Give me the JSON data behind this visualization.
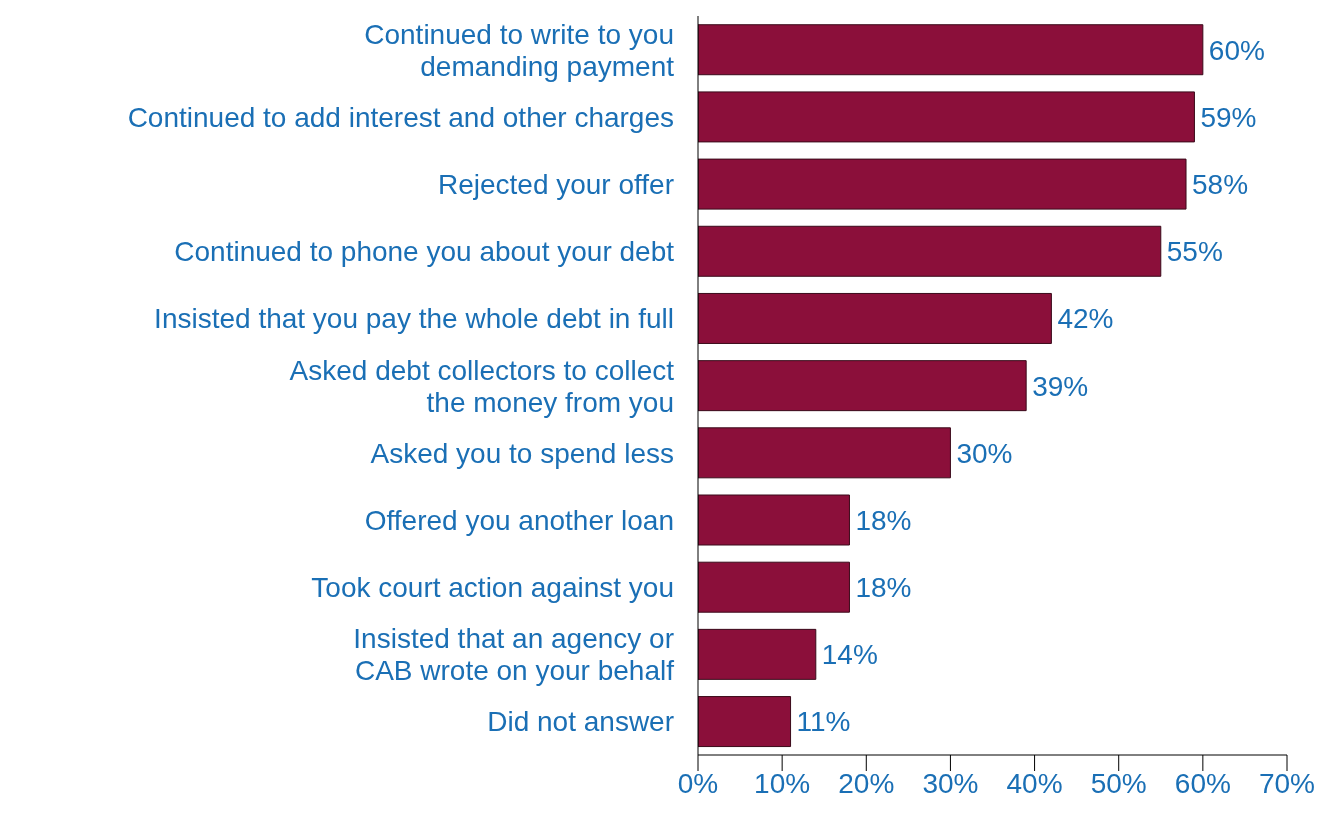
{
  "chart_data": {
    "type": "bar",
    "orientation": "horizontal",
    "categories": [
      "Continued to write to you\ndemanding payment",
      "Continued to add interest and other charges",
      "Rejected your offer",
      "Continued to phone you about your debt",
      "Insisted that you pay the whole debt in full",
      "Asked debt collectors to collect\nthe money from you",
      "Asked you to spend less",
      "Offered you another loan",
      "Took court action against you",
      "Insisted that an agency or\nCAB wrote on your behalf",
      "Did not answer"
    ],
    "values": [
      60,
      59,
      58,
      55,
      42,
      39,
      30,
      18,
      18,
      14,
      11
    ],
    "value_labels": [
      "60%",
      "59%",
      "58%",
      "55%",
      "42%",
      "39%",
      "30%",
      "18%",
      "18%",
      "14%",
      "11%"
    ],
    "color": "#8b0f3a",
    "xlim": [
      0,
      70
    ],
    "xticks": [
      {
        "value": 0,
        "label": "0%"
      },
      {
        "value": 10,
        "label": "10%"
      },
      {
        "value": 20,
        "label": "20%"
      },
      {
        "value": 30,
        "label": "30%"
      },
      {
        "value": 40,
        "label": "40%"
      },
      {
        "value": 50,
        "label": "50%"
      },
      {
        "value": 60,
        "label": "60%"
      },
      {
        "value": 70,
        "label": "70%"
      }
    ],
    "grid": false,
    "legend": false
  }
}
